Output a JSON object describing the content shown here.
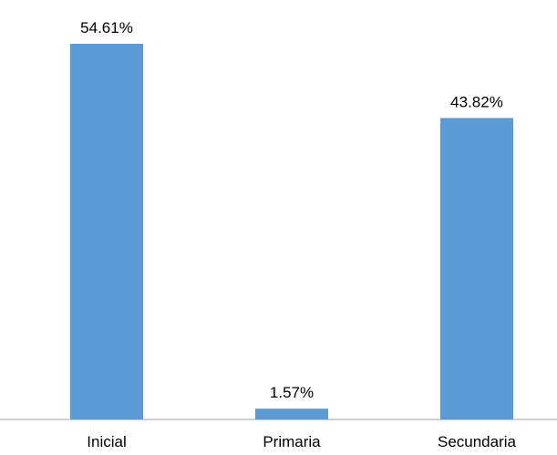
{
  "chart_data": {
    "type": "bar",
    "categories": [
      "Inicial",
      "Primaria",
      "Secundaria"
    ],
    "values": [
      54.61,
      1.57,
      43.82
    ],
    "value_labels": [
      "54.61%",
      "1.57%",
      "43.82%"
    ],
    "title": "",
    "xlabel": "",
    "ylabel": "",
    "ylim": [
      0,
      54.61
    ],
    "grid": false,
    "bar_color": "#5b9bd5",
    "axis_color": "#bfbfbf"
  }
}
